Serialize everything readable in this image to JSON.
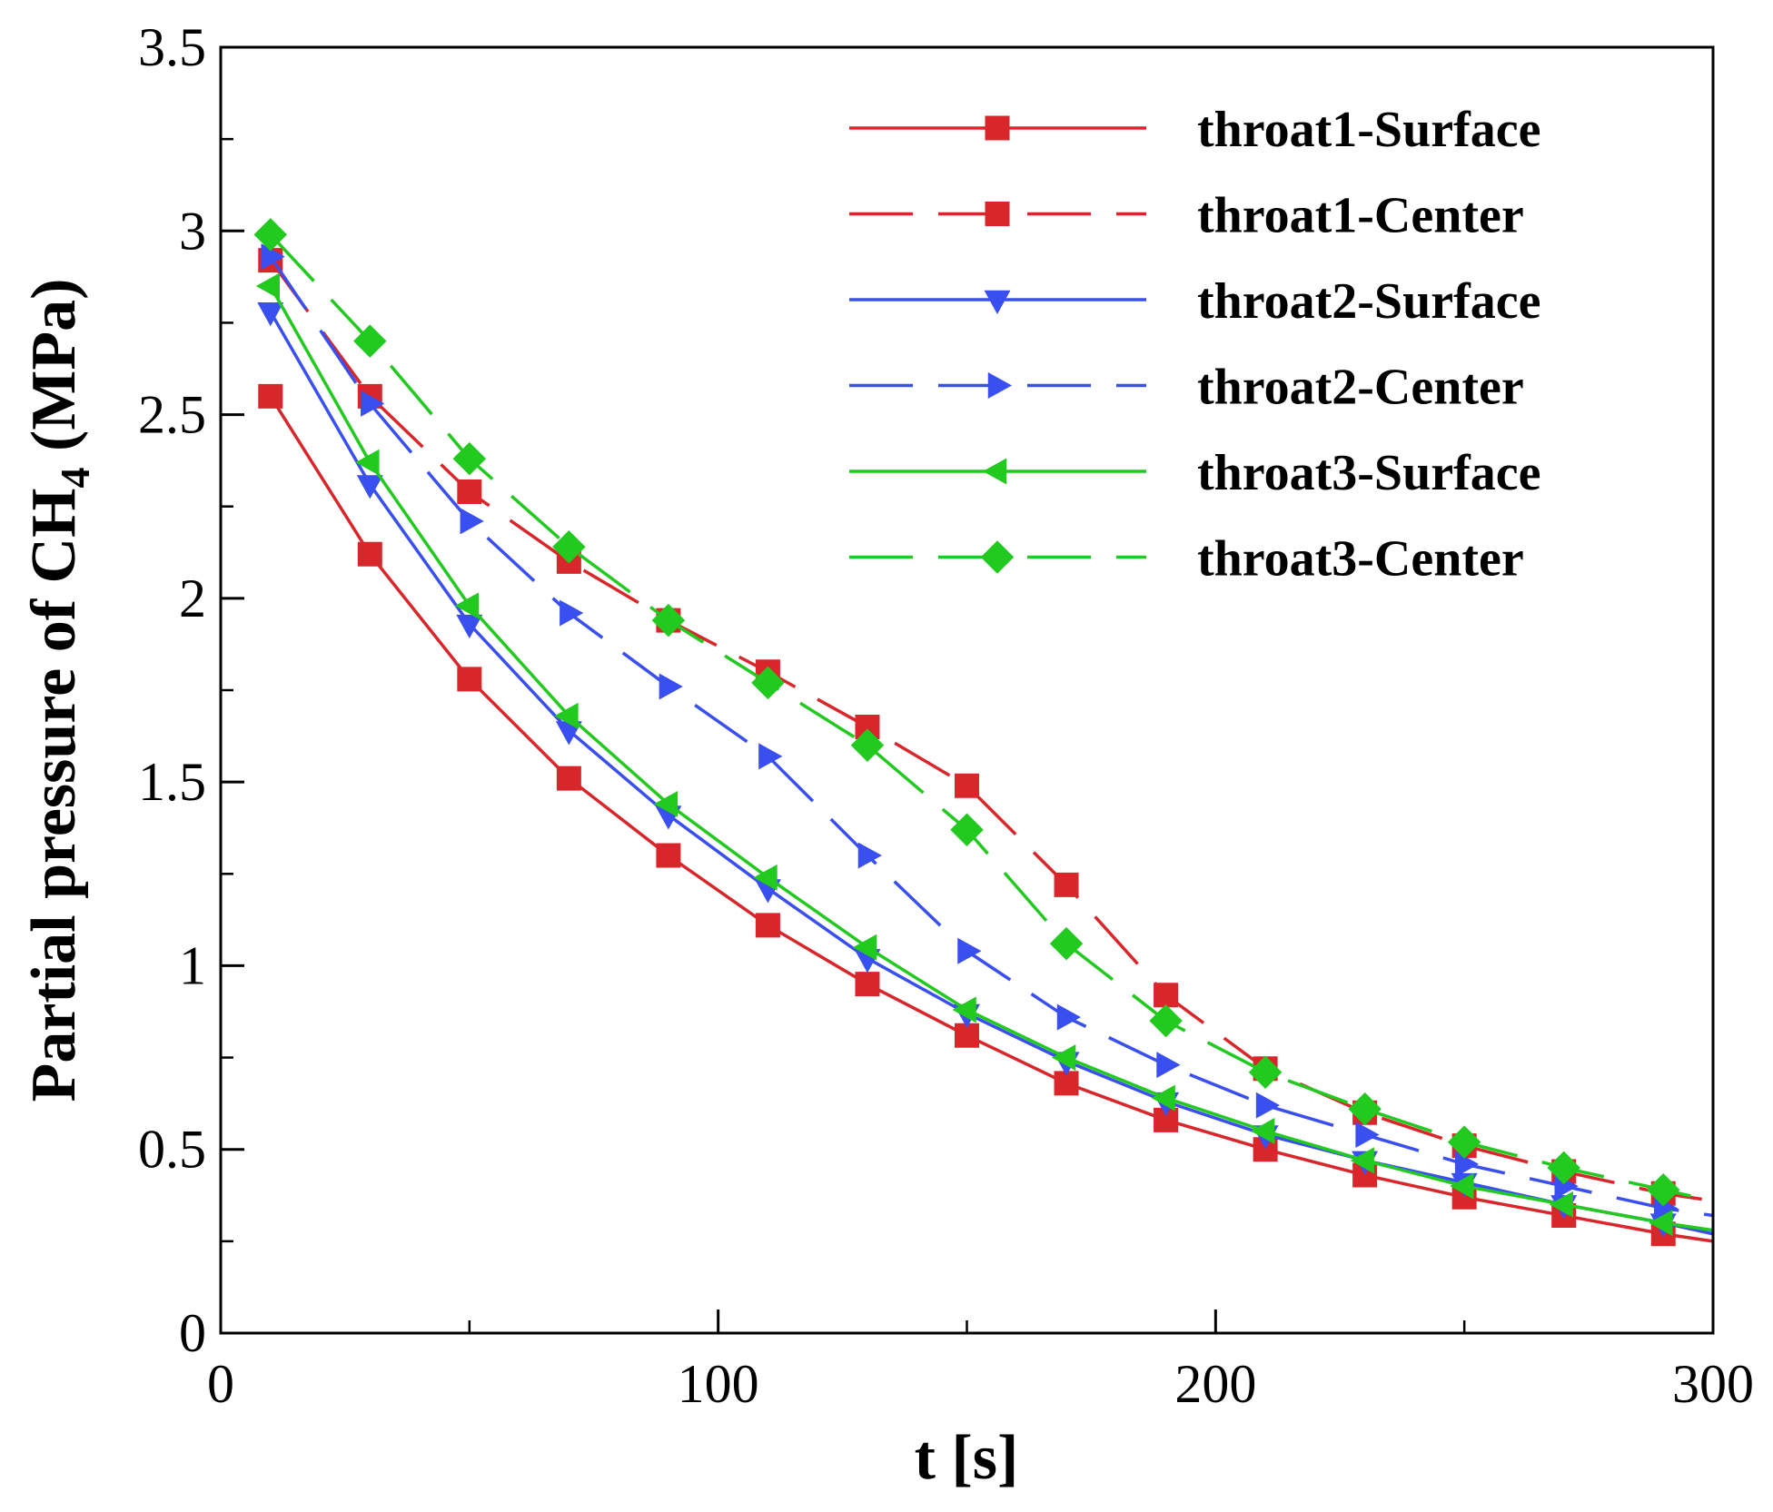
{
  "chart_data": {
    "type": "line",
    "title": "",
    "xlabel": "t [s]",
    "ylabel_parts": {
      "before": "Partial pressure of CH",
      "subscript": "4",
      "after": " (MPa)"
    },
    "ylabel": "Partial pressure of CH4 (MPa)",
    "xlim": [
      0,
      300
    ],
    "ylim": [
      0,
      3.5
    ],
    "x_ticks": [
      0,
      100,
      200,
      300
    ],
    "x_tick_labels": [
      "0",
      "100",
      "200",
      "300"
    ],
    "x_minor_ticks": [
      50,
      150,
      250
    ],
    "y_ticks": [
      0,
      0.5,
      1,
      1.5,
      2,
      2.5,
      3,
      3.5
    ],
    "y_tick_labels": [
      "0",
      "0.5",
      "1",
      "1.5",
      "2",
      "2.5",
      "3",
      "3.5"
    ],
    "y_minor_ticks": [
      0.25,
      0.75,
      1.25,
      1.75,
      2.25,
      2.75,
      3.25
    ],
    "grid": false,
    "legend_position": "top-right",
    "x": [
      10,
      30,
      50,
      70,
      90,
      110,
      130,
      150,
      170,
      190,
      210,
      230,
      250,
      270,
      290
    ],
    "x_end": 300,
    "series": [
      {
        "name": "throat1-Surface",
        "color": "#d9262b",
        "dash": "solid",
        "marker": "square",
        "values": [
          2.55,
          2.12,
          1.78,
          1.51,
          1.3,
          1.11,
          0.95,
          0.81,
          0.68,
          0.58,
          0.5,
          0.43,
          0.37,
          0.32,
          0.27
        ],
        "end_value": 0.25
      },
      {
        "name": "throat1-Center",
        "color": "#d9262b",
        "dash": "dashed",
        "marker": "square",
        "values": [
          2.92,
          2.55,
          2.29,
          2.1,
          1.94,
          1.8,
          1.65,
          1.49,
          1.22,
          0.92,
          0.72,
          0.6,
          0.51,
          0.44,
          0.38
        ],
        "end_value": 0.36
      },
      {
        "name": "throat2-Surface",
        "color": "#3a4ff0",
        "dash": "solid",
        "marker": "triangle-down",
        "values": [
          2.78,
          2.31,
          1.93,
          1.64,
          1.41,
          1.21,
          1.02,
          0.87,
          0.74,
          0.63,
          0.54,
          0.47,
          0.41,
          0.35,
          0.3
        ],
        "end_value": 0.27
      },
      {
        "name": "throat2-Center",
        "color": "#3a4ff0",
        "dash": "dashed",
        "marker": "triangle-right",
        "values": [
          2.93,
          2.53,
          2.21,
          1.96,
          1.76,
          1.57,
          1.3,
          1.04,
          0.86,
          0.73,
          0.62,
          0.54,
          0.46,
          0.4,
          0.34
        ],
        "end_value": 0.32
      },
      {
        "name": "throat3-Surface",
        "color": "#22c91f",
        "dash": "solid",
        "marker": "triangle-left",
        "values": [
          2.85,
          2.37,
          1.98,
          1.68,
          1.44,
          1.24,
          1.05,
          0.88,
          0.75,
          0.64,
          0.55,
          0.47,
          0.4,
          0.35,
          0.3
        ],
        "end_value": 0.28
      },
      {
        "name": "throat3-Center",
        "color": "#22c91f",
        "dash": "dashed",
        "marker": "diamond",
        "values": [
          2.99,
          2.7,
          2.38,
          2.14,
          1.94,
          1.77,
          1.6,
          1.37,
          1.06,
          0.85,
          0.71,
          0.61,
          0.52,
          0.45,
          0.39
        ],
        "end_value": 0.36
      }
    ]
  }
}
